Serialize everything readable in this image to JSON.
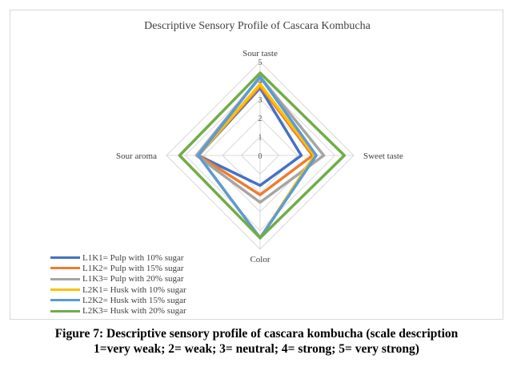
{
  "chart_data": {
    "type": "radar",
    "title": "Descriptive Sensory Profile of Cascara Kombucha",
    "axes": [
      "Sour taste",
      "Sweet taste",
      "Color",
      "Sour aroma"
    ],
    "rlim": [
      0,
      5
    ],
    "ticks": [
      "0",
      "1",
      "2",
      "3",
      "4",
      "5"
    ],
    "grid": true,
    "legend_position": "bottom-left",
    "series": [
      {
        "name": "L1K1= Pulp with 10% sugar",
        "color": "#4472c4",
        "values": [
          3.6,
          2.2,
          1.6,
          3.3
        ]
      },
      {
        "name": "L1K2= Pulp with 15% sugar",
        "color": "#ed7d31",
        "values": [
          3.7,
          2.8,
          2.1,
          3.3
        ]
      },
      {
        "name": "L1K3= Pulp with 20% sugar",
        "color": "#a5a5a5",
        "values": [
          4.2,
          3.4,
          2.5,
          3.4
        ]
      },
      {
        "name": "L2K1= Husk with 10% sugar",
        "color": "#ffc000",
        "values": [
          3.8,
          2.9,
          4.4,
          3.3
        ]
      },
      {
        "name": "L2K2= Husk with 15% sugar",
        "color": "#5b9bd5",
        "values": [
          4.2,
          3.0,
          4.4,
          3.3
        ]
      },
      {
        "name": "L2K3= Husk with 20% sugar",
        "color": "#70ad47",
        "values": [
          4.4,
          4.5,
          4.4,
          4.3
        ]
      }
    ]
  },
  "caption": {
    "line1": "Figure 7: Descriptive sensory profile of cascara kombucha (scale description",
    "line2": "1=very weak; 2= weak; 3= neutral; 4= strong; 5= very strong)"
  }
}
